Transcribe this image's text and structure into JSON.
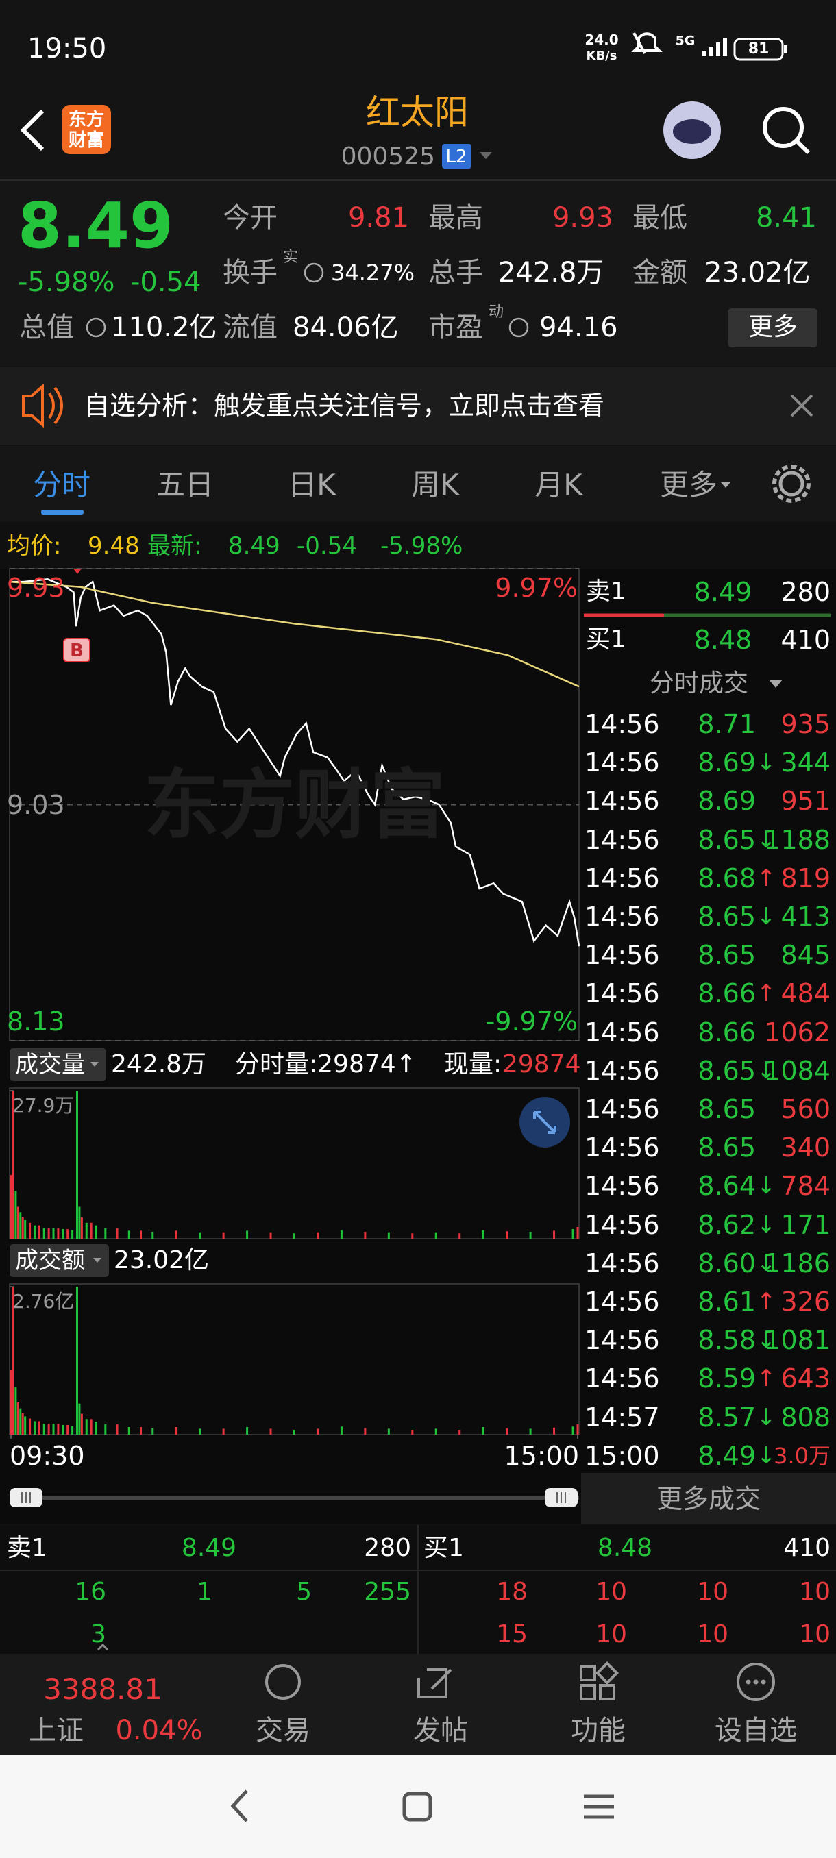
{
  "status_bar": {
    "time": "19:50",
    "net_speed": "24.0",
    "net_unit": "KB/s",
    "network": "5G",
    "battery": "81"
  },
  "header": {
    "logo_lines": [
      "东方",
      "财富"
    ],
    "title": "红太阳",
    "code": "000525",
    "level": "L2"
  },
  "quote": {
    "price": "8.49",
    "change_pct": "-5.98%",
    "change": "-0.54",
    "fields": [
      {
        "label": "今开",
        "value": "9.81",
        "color": "#ea3a3e"
      },
      {
        "label": "最高",
        "value": "9.93",
        "color": "#ea3a3e"
      },
      {
        "label": "最低",
        "value": "8.41",
        "color": "#25c43d"
      },
      {
        "label": "换手",
        "sup": "实",
        "value": "34.27%",
        "color": "#ffffff"
      },
      {
        "label": "总手",
        "value": "242.8万",
        "color": "#ffffff"
      },
      {
        "label": "金额",
        "value": "23.02亿",
        "color": "#ffffff"
      },
      {
        "label": "总值",
        "value": "110.2亿",
        "color": "#ffffff"
      },
      {
        "label": "流值",
        "value": "84.06亿",
        "color": "#ffffff"
      },
      {
        "label": "市盈",
        "sup": "动",
        "value": "94.16",
        "color": "#ffffff"
      }
    ],
    "more": "更多"
  },
  "banner": {
    "text": "自选分析：触发重点关注信号，立即点击查看"
  },
  "tabs": [
    "分时",
    "五日",
    "日K",
    "周K",
    "月K",
    "更多"
  ],
  "info_line": {
    "avg_label": "均价:",
    "avg": "9.48",
    "last_label": "最新:",
    "last": "8.49",
    "change": "-0.54",
    "change_pct": "-5.98%"
  },
  "watermark": "东方财富",
  "trade_marker": "B",
  "chart_data": [
    {
      "type": "line",
      "xlim": [
        0,
        240
      ],
      "ylim": [
        8.13,
        9.93
      ],
      "yticks": [
        {
          "value": 9.93,
          "label": "9.93"
        },
        {
          "value": 9.03,
          "label": "9.03"
        },
        {
          "value": 8.13,
          "label": "8.13"
        }
      ],
      "ytick_colors": [
        "#ea3a3e",
        "#9a9a9a",
        "#25c43d"
      ],
      "y2lim": [
        -9.97,
        9.97
      ],
      "y2ticks": [
        {
          "value": 9.97,
          "label": "9.97%"
        },
        {
          "value": -9.97,
          "label": "-9.97%"
        }
      ],
      "y2tick_colors": [
        "#ea3a3e",
        "#25c43d"
      ],
      "grid": true,
      "grid_style": "dashed",
      "series": [
        {
          "color": "#ffffff",
          "x": [
            0,
            6,
            16,
            24,
            27,
            28,
            30,
            32,
            35,
            38,
            44,
            48,
            54,
            58,
            64,
            66,
            68,
            71,
            74,
            76,
            81,
            86,
            91,
            96,
            101,
            106,
            114,
            116,
            121,
            125,
            128,
            134,
            138,
            141,
            146,
            151,
            154,
            157,
            161,
            166,
            171,
            176,
            181,
            186,
            188,
            194,
            198,
            204,
            208,
            216,
            221,
            226,
            231,
            236,
            238,
            240
          ],
          "values": [
            9.88,
            9.88,
            9.89,
            9.86,
            9.84,
            9.71,
            9.82,
            9.86,
            9.88,
            9.77,
            9.79,
            9.75,
            9.77,
            9.75,
            9.68,
            9.61,
            9.41,
            9.5,
            9.55,
            9.52,
            9.48,
            9.46,
            9.32,
            9.27,
            9.32,
            9.25,
            9.14,
            9.21,
            9.3,
            9.34,
            9.23,
            9.21,
            9.16,
            9.12,
            9.16,
            9.07,
            9.03,
            9.18,
            9.09,
            9.05,
            9.06,
            9.05,
            9.03,
            8.96,
            8.87,
            8.84,
            8.71,
            8.73,
            8.69,
            8.66,
            8.51,
            8.57,
            8.53,
            8.66,
            8.6,
            8.49
          ]
        },
        {
          "color": "#e8d77a",
          "x": [
            0,
            30,
            60,
            120,
            180,
            210,
            225,
            240
          ],
          "values": [
            9.88,
            9.86,
            9.8,
            9.72,
            9.66,
            9.6,
            9.54,
            9.48
          ]
        }
      ]
    },
    {
      "type": "bar",
      "title": "成交量",
      "total": "242.8万",
      "stat": "分时量:29874↑",
      "now_label": "现量:",
      "now_value": "29874",
      "xlim": [
        0,
        240
      ],
      "ylim": [
        0,
        27.9
      ],
      "yticks": [
        {
          "value": 27.9,
          "label": "27.9万"
        }
      ],
      "series": [
        {
          "color": "#e8323c",
          "x": [
            0,
            1,
            3,
            5,
            8,
            12,
            16,
            20,
            24,
            30,
            34,
            45,
            55,
            70,
            90,
            110,
            130,
            150,
            170,
            190,
            210,
            230,
            240
          ],
          "values": [
            12,
            27.9,
            6,
            4,
            3,
            2.5,
            2,
            2,
            1.8,
            4,
            3,
            2,
            1.5,
            1.5,
            1.2,
            1.2,
            1.2,
            1.3,
            1,
            1,
            1.4,
            1.5,
            2.2
          ]
        },
        {
          "color": "#1fc33a",
          "x": [
            2,
            4,
            6,
            10,
            14,
            18,
            22,
            26,
            28,
            29,
            32,
            36,
            40,
            50,
            60,
            80,
            100,
            120,
            140,
            160,
            180,
            200,
            220,
            238
          ],
          "values": [
            9,
            5,
            3.5,
            2.5,
            2,
            2,
            1.8,
            1.6,
            27.9,
            6,
            3,
            2.5,
            2,
            1.5,
            1.3,
            1.2,
            1.5,
            1,
            1.6,
            1.2,
            1.2,
            1.6,
            1.3,
            1.8
          ]
        }
      ]
    },
    {
      "type": "bar",
      "title": "成交额",
      "total": "23.02亿",
      "xlim": [
        0,
        240
      ],
      "ylim": [
        0,
        2.76
      ],
      "yticks": [
        {
          "value": 2.76,
          "label": "2.76亿"
        }
      ],
      "xticks": [
        {
          "value": 0,
          "label": "09:30"
        },
        {
          "value": 240,
          "label": "15:00"
        }
      ],
      "series": [
        {
          "color": "#e8323c",
          "x": [
            0,
            1,
            3,
            5,
            8,
            12,
            16,
            20,
            24,
            30,
            34,
            45,
            55,
            70,
            90,
            110,
            130,
            150,
            170,
            190,
            210,
            230,
            240
          ],
          "values": [
            1.2,
            2.76,
            0.6,
            0.4,
            0.3,
            0.25,
            0.2,
            0.2,
            0.18,
            0.39,
            0.29,
            0.19,
            0.14,
            0.14,
            0.11,
            0.11,
            0.11,
            0.12,
            0.09,
            0.09,
            0.12,
            0.13,
            0.19
          ]
        },
        {
          "color": "#1fc33a",
          "x": [
            2,
            4,
            6,
            10,
            14,
            18,
            22,
            26,
            28,
            29,
            32,
            36,
            40,
            50,
            60,
            80,
            100,
            120,
            140,
            160,
            180,
            200,
            220,
            238
          ],
          "values": [
            0.89,
            0.49,
            0.34,
            0.25,
            0.2,
            0.2,
            0.18,
            0.16,
            2.76,
            0.58,
            0.29,
            0.24,
            0.19,
            0.14,
            0.12,
            0.11,
            0.14,
            0.09,
            0.15,
            0.11,
            0.11,
            0.14,
            0.11,
            0.15
          ]
        }
      ]
    }
  ],
  "level1": {
    "sell_label": "卖1",
    "sell_price": "8.49",
    "sell_volume": "280",
    "buy_label": "买1",
    "buy_price": "8.48",
    "buy_volume": "410"
  },
  "trades": {
    "title": "分时成交",
    "more": "更多成交",
    "rows": [
      {
        "time": "14:56",
        "price": "8.71",
        "volume": "935",
        "volume_color": "#ea3a3e"
      },
      {
        "time": "14:56",
        "price": "8.69",
        "arrow": "↓",
        "arrow_color": "#25c43d",
        "volume": "344",
        "volume_color": "#25c43d"
      },
      {
        "time": "14:56",
        "price": "8.69",
        "volume": "951",
        "volume_color": "#ea3a3e"
      },
      {
        "time": "14:56",
        "price": "8.65",
        "arrow": "↓",
        "arrow_color": "#25c43d",
        "volume": "1188",
        "volume_color": "#25c43d"
      },
      {
        "time": "14:56",
        "price": "8.68",
        "arrow": "↑",
        "arrow_color": "#ea3a3e",
        "volume": "819",
        "volume_color": "#ea3a3e"
      },
      {
        "time": "14:56",
        "price": "8.65",
        "arrow": "↓",
        "arrow_color": "#25c43d",
        "volume": "413",
        "volume_color": "#25c43d"
      },
      {
        "time": "14:56",
        "price": "8.65",
        "volume": "845",
        "volume_color": "#25c43d"
      },
      {
        "time": "14:56",
        "price": "8.66",
        "arrow": "↑",
        "arrow_color": "#ea3a3e",
        "volume": "484",
        "volume_color": "#ea3a3e"
      },
      {
        "time": "14:56",
        "price": "8.66",
        "volume": "1062",
        "volume_color": "#ea3a3e"
      },
      {
        "time": "14:56",
        "price": "8.65",
        "arrow": "↓",
        "arrow_color": "#25c43d",
        "volume": "1084",
        "volume_color": "#25c43d"
      },
      {
        "time": "14:56",
        "price": "8.65",
        "volume": "560",
        "volume_color": "#ea3a3e"
      },
      {
        "time": "14:56",
        "price": "8.65",
        "volume": "340",
        "volume_color": "#ea3a3e"
      },
      {
        "time": "14:56",
        "price": "8.64",
        "arrow": "↓",
        "arrow_color": "#25c43d",
        "volume": "784",
        "volume_color": "#ea3a3e"
      },
      {
        "time": "14:56",
        "price": "8.62",
        "arrow": "↓",
        "arrow_color": "#25c43d",
        "volume": "171",
        "volume_color": "#25c43d"
      },
      {
        "time": "14:56",
        "price": "8.60",
        "arrow": "↓",
        "arrow_color": "#25c43d",
        "volume": "1186",
        "volume_color": "#25c43d"
      },
      {
        "time": "14:56",
        "price": "8.61",
        "arrow": "↑",
        "arrow_color": "#ea3a3e",
        "volume": "326",
        "volume_color": "#ea3a3e"
      },
      {
        "time": "14:56",
        "price": "8.58",
        "arrow": "↓",
        "arrow_color": "#25c43d",
        "volume": "1081",
        "volume_color": "#25c43d"
      },
      {
        "time": "14:56",
        "price": "8.59",
        "arrow": "↑",
        "arrow_color": "#ea3a3e",
        "volume": "643",
        "volume_color": "#ea3a3e"
      },
      {
        "time": "14:57",
        "price": "8.57",
        "arrow": "↓",
        "arrow_color": "#25c43d",
        "volume": "808",
        "volume_color": "#25c43d"
      },
      {
        "time": "15:00",
        "price": "8.49",
        "arrow": "↓",
        "arrow_color": "#25c43d",
        "volume": "3.0万",
        "volume_color": "#ea3a3e"
      }
    ]
  },
  "order_book": {
    "sell": {
      "label": "卖1",
      "price": "8.49",
      "volume": "280",
      "queue": [
        [
          "16",
          "1",
          "5",
          "255"
        ],
        [
          "3"
        ]
      ],
      "color": "#25c43d"
    },
    "buy": {
      "label": "买1",
      "price": "8.48",
      "volume": "410",
      "queue": [
        [
          "18",
          "10",
          "10",
          "10"
        ],
        [
          "15",
          "10",
          "10",
          "10"
        ]
      ],
      "color": "#ea3a3e"
    }
  },
  "bottom_nav": {
    "index_value": "3388.81",
    "index_name": "上证",
    "index_change": "0.04%",
    "items": [
      "交易",
      "发帖",
      "功能",
      "设自选"
    ]
  }
}
